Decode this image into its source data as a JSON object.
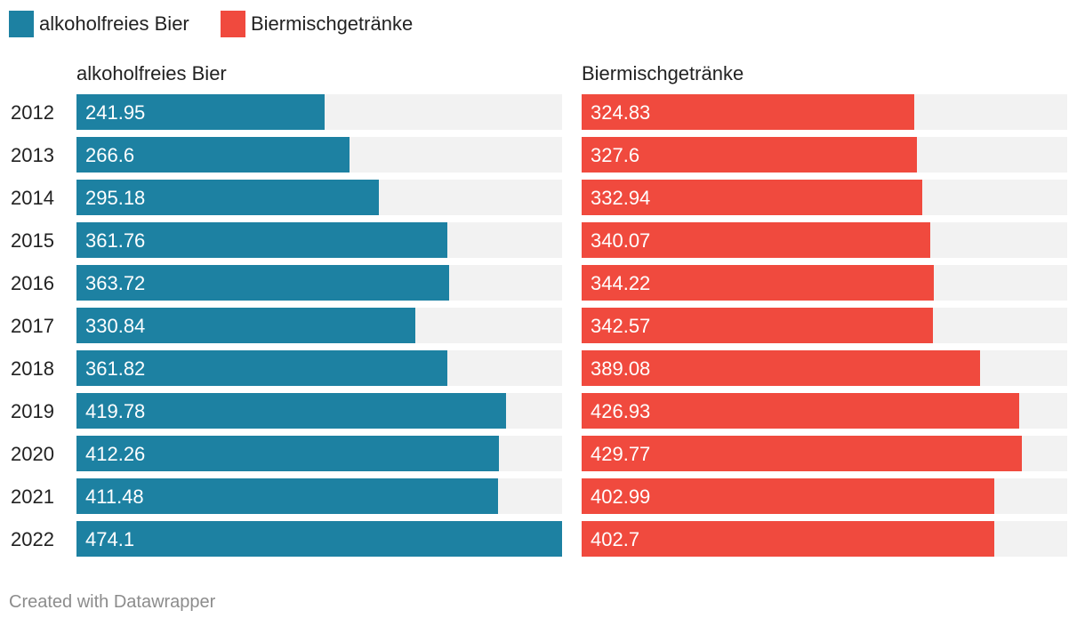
{
  "chart_data": {
    "type": "bar",
    "categories": [
      "2012",
      "2013",
      "2014",
      "2015",
      "2016",
      "2017",
      "2018",
      "2019",
      "2020",
      "2021",
      "2022"
    ],
    "series": [
      {
        "name": "alkoholfreies Bier",
        "values": [
          241.95,
          266.6,
          295.18,
          361.76,
          363.72,
          330.84,
          361.82,
          419.78,
          412.26,
          411.48,
          474.1
        ],
        "labels": [
          "241.95",
          "266.6",
          "295.18",
          "361.76",
          "363.72",
          "330.84",
          "361.82",
          "419.78",
          "412.26",
          "411.48",
          "474.1"
        ],
        "color": "#1d81a2"
      },
      {
        "name": "Biermischgetränke",
        "values": [
          324.83,
          327.6,
          332.94,
          340.07,
          344.22,
          342.57,
          389.08,
          426.93,
          429.77,
          402.99,
          402.7
        ],
        "labels": [
          "324.83",
          "327.6",
          "332.94",
          "340.07",
          "344.22",
          "342.57",
          "389.08",
          "426.93",
          "429.77",
          "402.99",
          "402.7"
        ],
        "color": "#f04a3e"
      }
    ],
    "xlim": [
      0,
      474.1
    ],
    "background_color": "#f2f2f2",
    "legend": "top-left"
  },
  "footer": {
    "text": "Created with Datawrapper"
  }
}
